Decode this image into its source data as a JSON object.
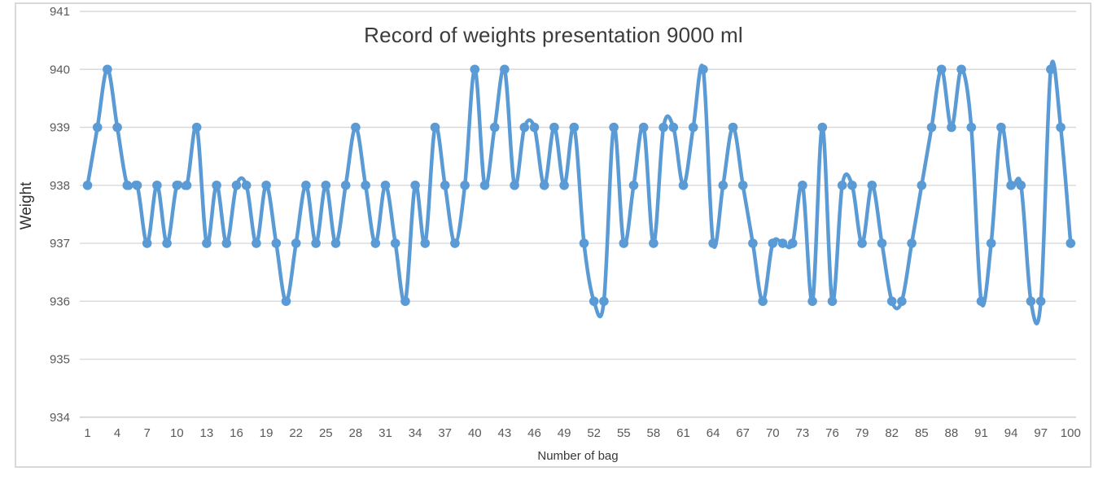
{
  "chart": {
    "title": "Record of weights presentation 9000 ml",
    "x_axis_title": "Number of bag",
    "y_axis_title": "Weight"
  },
  "chart_data": {
    "type": "line",
    "title": "Record of weights presentation 9000 ml",
    "xlabel": "Number of bag",
    "ylabel": "Weight",
    "x": [
      1,
      2,
      3,
      4,
      5,
      6,
      7,
      8,
      9,
      10,
      11,
      12,
      13,
      14,
      15,
      16,
      17,
      18,
      19,
      20,
      21,
      22,
      23,
      24,
      25,
      26,
      27,
      28,
      29,
      30,
      31,
      32,
      33,
      34,
      35,
      36,
      37,
      38,
      39,
      40,
      41,
      42,
      43,
      44,
      45,
      46,
      47,
      48,
      49,
      50,
      51,
      52,
      53,
      54,
      55,
      56,
      57,
      58,
      59,
      60,
      61,
      62,
      63,
      64,
      65,
      66,
      67,
      68,
      69,
      70,
      71,
      72,
      73,
      74,
      75,
      76,
      77,
      78,
      79,
      80,
      81,
      82,
      83,
      84,
      85,
      86,
      87,
      88,
      89,
      90,
      91,
      92,
      93,
      94,
      95,
      96,
      97,
      98,
      99,
      100
    ],
    "values": [
      938,
      939,
      940,
      939,
      938,
      938,
      937,
      938,
      937,
      938,
      938,
      939,
      937,
      938,
      937,
      938,
      938,
      937,
      938,
      937,
      936,
      937,
      938,
      937,
      938,
      937,
      938,
      939,
      938,
      937,
      938,
      937,
      936,
      938,
      937,
      939,
      938,
      937,
      938,
      940,
      938,
      939,
      940,
      938,
      939,
      939,
      938,
      939,
      938,
      939,
      937,
      936,
      936,
      939,
      937,
      938,
      939,
      937,
      939,
      939,
      938,
      939,
      940,
      937,
      938,
      939,
      938,
      937,
      936,
      937,
      937,
      937,
      938,
      936,
      939,
      936,
      938,
      938,
      937,
      938,
      937,
      936,
      936,
      937,
      938,
      939,
      940,
      939,
      940,
      939,
      936,
      937,
      939,
      938,
      938,
      936,
      936,
      940,
      939,
      937
    ],
    "ylim": [
      934,
      941
    ],
    "y_ticks": [
      934,
      935,
      936,
      937,
      938,
      939,
      940,
      941
    ],
    "x_tick_labels": [
      1,
      4,
      7,
      10,
      13,
      16,
      19,
      22,
      25,
      28,
      31,
      34,
      37,
      40,
      43,
      46,
      49,
      52,
      55,
      58,
      61,
      64,
      67,
      70,
      73,
      76,
      79,
      82,
      85,
      88,
      91,
      94,
      97,
      100
    ],
    "grid": true,
    "legend": false,
    "line_style": "smooth",
    "marker": "circle",
    "colors": {
      "series": "#5B9BD5",
      "gridline": "#D9D9D9",
      "axis_line": "#C9C9C9",
      "tick_label": "#595959",
      "border": "#D9D9D9"
    }
  }
}
